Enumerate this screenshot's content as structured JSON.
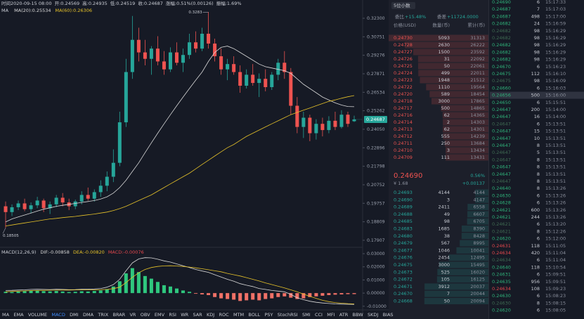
{
  "header": {
    "items": [
      "时间2020-09-15 08:00",
      "开:0.24569",
      "高:0.24935",
      "低:0.24519",
      "收:0.24687",
      "涨幅:0.51%(0.00126)",
      "振幅:1.69%"
    ]
  },
  "chart_data": {
    "type": "candlestick",
    "legend_title": "MA",
    "log_scale": true,
    "ylim": [
      0.1764,
      0.3328
    ],
    "yticks": [
      {
        "value": 0.323,
        "label": "0.32300"
      },
      {
        "value": 0.30751,
        "label": "0.30751"
      },
      {
        "value": 0.29276,
        "label": "0.29276"
      },
      {
        "value": 0.27871,
        "label": "0.27871"
      },
      {
        "value": 0.26534,
        "label": "0.26534"
      },
      {
        "value": 0.25262,
        "label": "0.25262"
      },
      {
        "value": 0.2405,
        "label": "0.24050"
      },
      {
        "value": 0.22896,
        "label": "0.22896"
      },
      {
        "value": 0.21798,
        "label": "0.21798"
      },
      {
        "value": 0.20752,
        "label": "0.20752"
      },
      {
        "value": 0.19757,
        "label": "0.19757"
      },
      {
        "value": 0.18809,
        "label": "0.18809"
      },
      {
        "value": 0.17907,
        "label": "0.17907"
      }
    ],
    "up_color": "#26a69a",
    "down_color": "#ef5350",
    "last_price": 0.24687,
    "high_label": 0.3283,
    "low_label": 0.18505,
    "candles": [
      [
        0.196,
        0.1985,
        0.18505,
        0.193
      ],
      [
        0.193,
        0.197,
        0.191,
        0.1955
      ],
      [
        0.1955,
        0.199,
        0.194,
        0.1975
      ],
      [
        0.1975,
        0.2,
        0.1935,
        0.1945
      ],
      [
        0.1945,
        0.198,
        0.1925,
        0.1965
      ],
      [
        0.1965,
        0.201,
        0.195,
        0.199
      ],
      [
        0.199,
        0.2,
        0.193,
        0.195
      ],
      [
        0.195,
        0.1985,
        0.192,
        0.197
      ],
      [
        0.197,
        0.202,
        0.1955,
        0.2005
      ],
      [
        0.2005,
        0.203,
        0.196,
        0.198
      ],
      [
        0.198,
        0.2,
        0.194,
        0.196
      ],
      [
        0.196,
        0.1995,
        0.1945,
        0.1985
      ],
      [
        0.1985,
        0.204,
        0.197,
        0.202
      ],
      [
        0.202,
        0.206,
        0.199,
        0.2
      ],
      [
        0.2,
        0.205,
        0.1985,
        0.2035
      ],
      [
        0.2035,
        0.21,
        0.201,
        0.207
      ],
      [
        0.207,
        0.215,
        0.204,
        0.212
      ],
      [
        0.212,
        0.228,
        0.209,
        0.22
      ],
      [
        0.22,
        0.252,
        0.218,
        0.245
      ],
      [
        0.245,
        0.29,
        0.242,
        0.28
      ],
      [
        0.28,
        0.325,
        0.275,
        0.305
      ],
      [
        0.305,
        0.315,
        0.288,
        0.295
      ],
      [
        0.295,
        0.305,
        0.285,
        0.29
      ],
      [
        0.29,
        0.3,
        0.278,
        0.298
      ],
      [
        0.298,
        0.308,
        0.285,
        0.288
      ],
      [
        0.288,
        0.296,
        0.278,
        0.282
      ],
      [
        0.282,
        0.299,
        0.28,
        0.295
      ],
      [
        0.295,
        0.303,
        0.285,
        0.287
      ],
      [
        0.287,
        0.298,
        0.28,
        0.293
      ],
      [
        0.293,
        0.31,
        0.29,
        0.303
      ],
      [
        0.303,
        0.312,
        0.295,
        0.298
      ],
      [
        0.298,
        0.315,
        0.296,
        0.31
      ],
      [
        0.31,
        0.3283,
        0.298,
        0.302
      ],
      [
        0.302,
        0.306,
        0.288,
        0.292
      ],
      [
        0.292,
        0.298,
        0.278,
        0.282
      ],
      [
        0.282,
        0.29,
        0.274,
        0.286
      ],
      [
        0.286,
        0.292,
        0.278,
        0.28
      ],
      [
        0.28,
        0.285,
        0.265,
        0.27
      ],
      [
        0.27,
        0.282,
        0.268,
        0.278
      ],
      [
        0.278,
        0.286,
        0.27,
        0.272
      ],
      [
        0.272,
        0.279,
        0.262,
        0.275
      ],
      [
        0.275,
        0.282,
        0.266,
        0.269
      ],
      [
        0.269,
        0.28,
        0.267,
        0.278
      ],
      [
        0.278,
        0.29,
        0.274,
        0.287
      ],
      [
        0.287,
        0.296,
        0.275,
        0.28
      ],
      [
        0.28,
        0.283,
        0.25,
        0.256
      ],
      [
        0.256,
        0.262,
        0.238,
        0.242
      ],
      [
        0.242,
        0.252,
        0.235,
        0.248
      ],
      [
        0.248,
        0.25,
        0.233,
        0.238
      ],
      [
        0.238,
        0.247,
        0.234,
        0.244
      ],
      [
        0.244,
        0.248,
        0.236,
        0.24
      ],
      [
        0.24,
        0.249,
        0.238,
        0.246
      ],
      [
        0.246,
        0.252,
        0.24,
        0.242
      ],
      [
        0.242,
        0.253,
        0.241,
        0.25
      ],
      [
        0.25,
        0.252,
        0.242,
        0.244
      ],
      [
        0.24569,
        0.24935,
        0.24519,
        0.24687
      ]
    ],
    "series": [
      {
        "name": "MA(20):0.25534",
        "color": "#d9d9d9",
        "values": [
          0.188,
          0.1895,
          0.1905,
          0.1915,
          0.1925,
          0.1935,
          0.1945,
          0.1952,
          0.196,
          0.1965,
          0.197,
          0.1975,
          0.198,
          0.1985,
          0.199,
          0.1998,
          0.201,
          0.203,
          0.206,
          0.21,
          0.215,
          0.22,
          0.226,
          0.232,
          0.238,
          0.244,
          0.25,
          0.256,
          0.262,
          0.268,
          0.274,
          0.28,
          0.288,
          0.295,
          0.299,
          0.3,
          0.298,
          0.295,
          0.292,
          0.289,
          0.286,
          0.284,
          0.283,
          0.282,
          0.281,
          0.279,
          0.275,
          0.271,
          0.268,
          0.265,
          0.262,
          0.26,
          0.258,
          0.2565,
          0.2555,
          0.25534
        ]
      },
      {
        "name": "MA(60):0.26306",
        "color": "#e6c229",
        "values": [
          0.186,
          0.1865,
          0.187,
          0.1875,
          0.188,
          0.1885,
          0.189,
          0.1895,
          0.1898,
          0.1902,
          0.1905,
          0.1908,
          0.1912,
          0.1916,
          0.192,
          0.1925,
          0.193,
          0.1938,
          0.1948,
          0.196,
          0.1975,
          0.199,
          0.2005,
          0.202,
          0.204,
          0.206,
          0.208,
          0.21,
          0.212,
          0.214,
          0.2165,
          0.219,
          0.2215,
          0.224,
          0.2265,
          0.229,
          0.231,
          0.2335,
          0.236,
          0.238,
          0.24,
          0.242,
          0.244,
          0.246,
          0.248,
          0.25,
          0.2515,
          0.253,
          0.2545,
          0.256,
          0.2575,
          0.259,
          0.26,
          0.2612,
          0.2622,
          0.26306
        ]
      }
    ],
    "macd": {
      "label": "MACD(12,26,9)",
      "ylim": [
        -0.0133,
        0.0327
      ],
      "yticks": [
        {
          "value": 0.03,
          "label": "0.03000"
        },
        {
          "value": 0.02,
          "label": "0.02000"
        },
        {
          "value": 0.01,
          "label": "0.01000"
        },
        {
          "value": 0,
          "label": "0.00000"
        },
        {
          "value": -0.01,
          "label": "-0.01000"
        }
      ],
      "histogram": {
        "name": "MACD:-0.00076",
        "color": "#e5484d",
        "up_color": "#2fc77e",
        "down_color": "#f07167",
        "values": [
          0.001,
          0.0008,
          0.0012,
          0.0015,
          0.002,
          0.0018,
          0.0015,
          0.0013,
          0.0016,
          0.0012,
          0.0008,
          0.001,
          0.0014,
          0.0012,
          0.0016,
          0.002,
          0.003,
          0.005,
          0.009,
          0.015,
          0.019,
          0.016,
          0.013,
          0.011,
          0.0085,
          0.006,
          0.005,
          0.0035,
          0.002,
          0.001,
          -0.0005,
          -0.001,
          -0.0015,
          -0.003,
          -0.004,
          -0.0045,
          -0.005,
          -0.006,
          -0.0055,
          -0.005,
          -0.0055,
          -0.0045,
          -0.004,
          -0.003,
          -0.0025,
          -0.0035,
          -0.0045,
          -0.004,
          -0.003,
          -0.0025,
          -0.002,
          -0.0015,
          -0.0012,
          -0.001,
          -0.0008,
          -0.00076
        ]
      },
      "series": [
        {
          "name": "DIF:-0.00858",
          "color": "#d9d9d9",
          "values": [
            0.002,
            0.0021,
            0.0023,
            0.0025,
            0.0028,
            0.0029,
            0.0028,
            0.0027,
            0.0029,
            0.0028,
            0.0026,
            0.0027,
            0.0029,
            0.0029,
            0.0031,
            0.0035,
            0.0045,
            0.0065,
            0.0105,
            0.017,
            0.023,
            0.026,
            0.027,
            0.0268,
            0.0258,
            0.0245,
            0.0236,
            0.0222,
            0.0208,
            0.0195,
            0.018,
            0.0168,
            0.0158,
            0.014,
            0.0122,
            0.0105,
            0.009,
            0.0072,
            0.006,
            0.005,
            0.0035,
            0.0028,
            0.002,
            0.0015,
            0.001,
            -0.001,
            -0.0035,
            -0.005,
            -0.0062,
            -0.007,
            -0.0075,
            -0.0079,
            -0.0082,
            -0.0084,
            -0.0085,
            -0.00858
          ]
        },
        {
          "name": "DEA:-0.00820",
          "color": "#e6c229",
          "values": [
            0.001,
            0.0013,
            0.0015,
            0.0017,
            0.0019,
            0.002,
            0.0021,
            0.0022,
            0.0022,
            0.0023,
            0.0023,
            0.0024,
            0.0024,
            0.0025,
            0.0025,
            0.0026,
            0.0028,
            0.0034,
            0.0045,
            0.008,
            0.012,
            0.0155,
            0.018,
            0.0195,
            0.0203,
            0.0207,
            0.0208,
            0.0206,
            0.0203,
            0.0198,
            0.0192,
            0.0185,
            0.0178,
            0.017,
            0.0162,
            0.015,
            0.014,
            0.013,
            0.0118,
            0.0105,
            0.0092,
            0.0078,
            0.0065,
            0.0052,
            0.004,
            0.0025,
            0.001,
            -0.0008,
            -0.0025,
            -0.004,
            -0.0055,
            -0.0065,
            -0.0072,
            -0.0077,
            -0.008,
            -0.0082
          ]
        }
      ]
    }
  },
  "indicator_tabs": [
    "MA",
    "EMA",
    "VOLUME",
    "MACD",
    "DMI",
    "DMA",
    "TRIX",
    "BRAR",
    "VR",
    "OBV",
    "EMV",
    "RSI",
    "WR",
    "SAR",
    "KDJ",
    "ROC",
    "MTM",
    "BOLL",
    "PSY",
    "StochRSI",
    "SMI",
    "CCI",
    "MFI",
    "ATR",
    "BBW",
    "SKDJ",
    "BIAS"
  ],
  "active_tab_index": 3,
  "order_book": {
    "decimals": "5位小数",
    "ratio_label": "委比",
    "ratio": "+15.48%",
    "diff_label": "委差",
    "diff": "+11724.0000",
    "columns": [
      "价格(USD)",
      "数量(币)",
      "累计(币)"
    ],
    "ask_color": "#ef5350",
    "bid_color": "#26a69a",
    "asks": [
      [
        "0.24730",
        5093,
        31313
      ],
      [
        "0.24728",
        2630,
        26222
      ],
      [
        "0.24727",
        1500,
        23592
      ],
      [
        "0.24726",
        31,
        22092
      ],
      [
        "0.24725",
        50,
        22061
      ],
      [
        "0.24724",
        499,
        22011
      ],
      [
        "0.24723",
        1948,
        21512
      ],
      [
        "0.24722",
        1110,
        19564
      ],
      [
        "0.24720",
        589,
        18454
      ],
      [
        "0.24718",
        3000,
        17865
      ],
      [
        "0.24717",
        500,
        14865
      ],
      [
        "0.24716",
        62,
        14365
      ],
      [
        "0.24714",
        2,
        14303
      ],
      [
        "0.24713",
        62,
        14301
      ],
      [
        "0.24712",
        555,
        14239
      ],
      [
        "0.24711",
        250,
        13684
      ],
      [
        "0.24710",
        3,
        13434
      ],
      [
        "0.24709",
        111,
        13431
      ]
    ],
    "last": {
      "price": "0.24690",
      "change_pct": "0.56%",
      "cny": "¥ 1.68",
      "change": "+0.00137"
    },
    "bids": [
      [
        "0.24693",
        4144,
        4144
      ],
      [
        "0.24690",
        3,
        4147
      ],
      [
        "0.24689",
        2411,
        6558
      ],
      [
        "0.24688",
        49,
        6607
      ],
      [
        "0.24685",
        98,
        6705
      ],
      [
        "0.24683",
        1685,
        8390
      ],
      [
        "0.24680",
        38,
        8428
      ],
      [
        "0.24679",
        567,
        8995
      ],
      [
        "0.24677",
        1046,
        10041
      ],
      [
        "0.24676",
        2454,
        12495
      ],
      [
        "0.24675",
        3000,
        15495
      ],
      [
        "0.24673",
        525,
        16020
      ],
      [
        "0.24672",
        105,
        16125
      ],
      [
        "0.24671",
        3912,
        20037
      ],
      [
        "0.24670",
        7,
        20044
      ],
      [
        "0.24668",
        50,
        20094
      ]
    ]
  },
  "trades": {
    "highlight_row": 13,
    "rows": [
      [
        "0.24690",
        6,
        "15:17:33"
      ],
      [
        "0.24687",
        7,
        "15:17:03"
      ],
      [
        "0.24687",
        498,
        "15:17:00"
      ],
      [
        "0.24682",
        24,
        "15:16:59"
      ],
      [
        "0.24682",
        98,
        "15:16:29"
      ],
      [
        "0.24682",
        98,
        "15:16:29"
      ],
      [
        "0.24682",
        98,
        "15:16:29"
      ],
      [
        "0.24682",
        98,
        "15:16:29"
      ],
      [
        "0.24682",
        98,
        "15:16:29"
      ],
      [
        "0.24670",
        6,
        "15:16:23"
      ],
      [
        "0.24675",
        112,
        "15:16:10"
      ],
      [
        "0.24675",
        98,
        "15:16:09"
      ],
      [
        "0.24660",
        6,
        "15:16:03"
      ],
      [
        "0.24656",
        500,
        "15:16:00"
      ],
      [
        "0.24650",
        6,
        "15:15:51"
      ],
      [
        "0.24647",
        200,
        "15:14:00"
      ],
      [
        "0.24647",
        16,
        "15:14:00"
      ],
      [
        "0.24647",
        6,
        "15:13:51"
      ],
      [
        "0.24647",
        15,
        "15:13:51"
      ],
      [
        "0.24647",
        10,
        "15:13:51"
      ],
      [
        "0.24647",
        8,
        "15:13:51"
      ],
      [
        "0.24647",
        5,
        "15:13:51"
      ],
      [
        "0.24647",
        8,
        "15:13:51"
      ],
      [
        "0.24647",
        8,
        "15:13:51"
      ],
      [
        "0.24647",
        8,
        "15:13:51"
      ],
      [
        "0.24647",
        8,
        "15:13:51"
      ],
      [
        "0.24640",
        8,
        "15:13:26"
      ],
      [
        "0.24630",
        6,
        "15:13:26"
      ],
      [
        "0.24628",
        6,
        "15:13:26"
      ],
      [
        "0.24621",
        600,
        "15:13:26"
      ],
      [
        "0.24621",
        244,
        "15:13:26"
      ],
      [
        "0.24621",
        6,
        "15:13:20"
      ],
      [
        "0.24621",
        8,
        "15:12:26"
      ],
      [
        "0.24620",
        6,
        "15:12:00"
      ],
      [
        "0.24631",
        118,
        "15:11:05"
      ],
      [
        "0.24634",
        420,
        "15:11:04"
      ],
      [
        "0.24634",
        6,
        "15:11:04"
      ],
      [
        "0.24640",
        118,
        "15:10:54"
      ],
      [
        "0.24631",
        6,
        "15:09:51"
      ],
      [
        "0.24635",
        956,
        "15:09:51"
      ],
      [
        "0.24634",
        108,
        "15:09:23"
      ],
      [
        "0.24630",
        6,
        "15:08:23"
      ],
      [
        "0.24630",
        8,
        "15:08:15"
      ],
      [
        "0.24620",
        6,
        "15:08:05"
      ]
    ],
    "colors": [
      "#2fb37a",
      "#2fb37a",
      "#2fb37a",
      "#2fb37a",
      "#3f6b52",
      "#3f6b52",
      "#2fb37a",
      "#2fb37a",
      "#2fb37a",
      "#2fb37a",
      "#2fb37a",
      "#3f6b52",
      "#2fb37a",
      "#2fb37a",
      "#2fb37a",
      "#2fb37a",
      "#2fb37a",
      "#3f6b52",
      "#2fb37a",
      "#2fb37a",
      "#2fb37a",
      "#3f6b52",
      "#3f6b52",
      "#2fb37a",
      "#2fb37a",
      "#3f6b52",
      "#2fb37a",
      "#2fb37a",
      "#2fb37a",
      "#2fb37a",
      "#2fb37a",
      "#3f6b52",
      "#3f6b52",
      "#2fb37a",
      "#e5484d",
      "#e5484d",
      "#3f6b52",
      "#2fb37a",
      "#2fb37a",
      "#2fb37a",
      "#e5484d",
      "#2fb37a",
      "#3f6b52",
      "#2fb37a"
    ]
  }
}
